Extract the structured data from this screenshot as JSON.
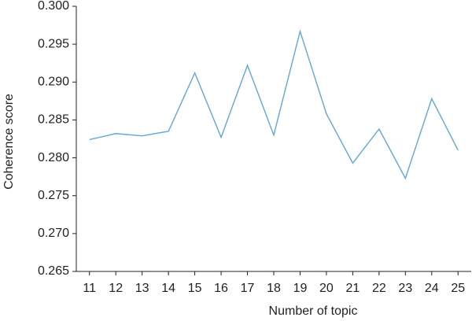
{
  "chart_data": {
    "type": "line",
    "x_label": "Number of topic",
    "y_label": "Coherence score",
    "x": [
      11,
      12,
      13,
      14,
      15,
      16,
      17,
      18,
      19,
      20,
      21,
      22,
      23,
      24,
      25
    ],
    "series": [
      {
        "color": "#5fa8d8",
        "values": [
          0.2824,
          0.2832,
          0.2829,
          0.2835,
          0.2912,
          0.2827,
          0.2922,
          0.283,
          0.2967,
          0.2858,
          0.2793,
          0.2838,
          0.2773,
          0.2878,
          0.281
        ]
      }
    ],
    "xlim": [
      10.5,
      25.5
    ],
    "ylim": [
      0.265,
      0.3
    ],
    "yticks": [
      0.265,
      {
        "value": 0.27,
        "label": "0.270"
      },
      0.275,
      {
        "value": 0.28,
        "label": "0.280"
      },
      0.285,
      {
        "value": 0.29,
        "label": "0.290"
      },
      0.295,
      {
        "value": 0.3,
        "label": "0.300"
      }
    ],
    "grid": false
  }
}
